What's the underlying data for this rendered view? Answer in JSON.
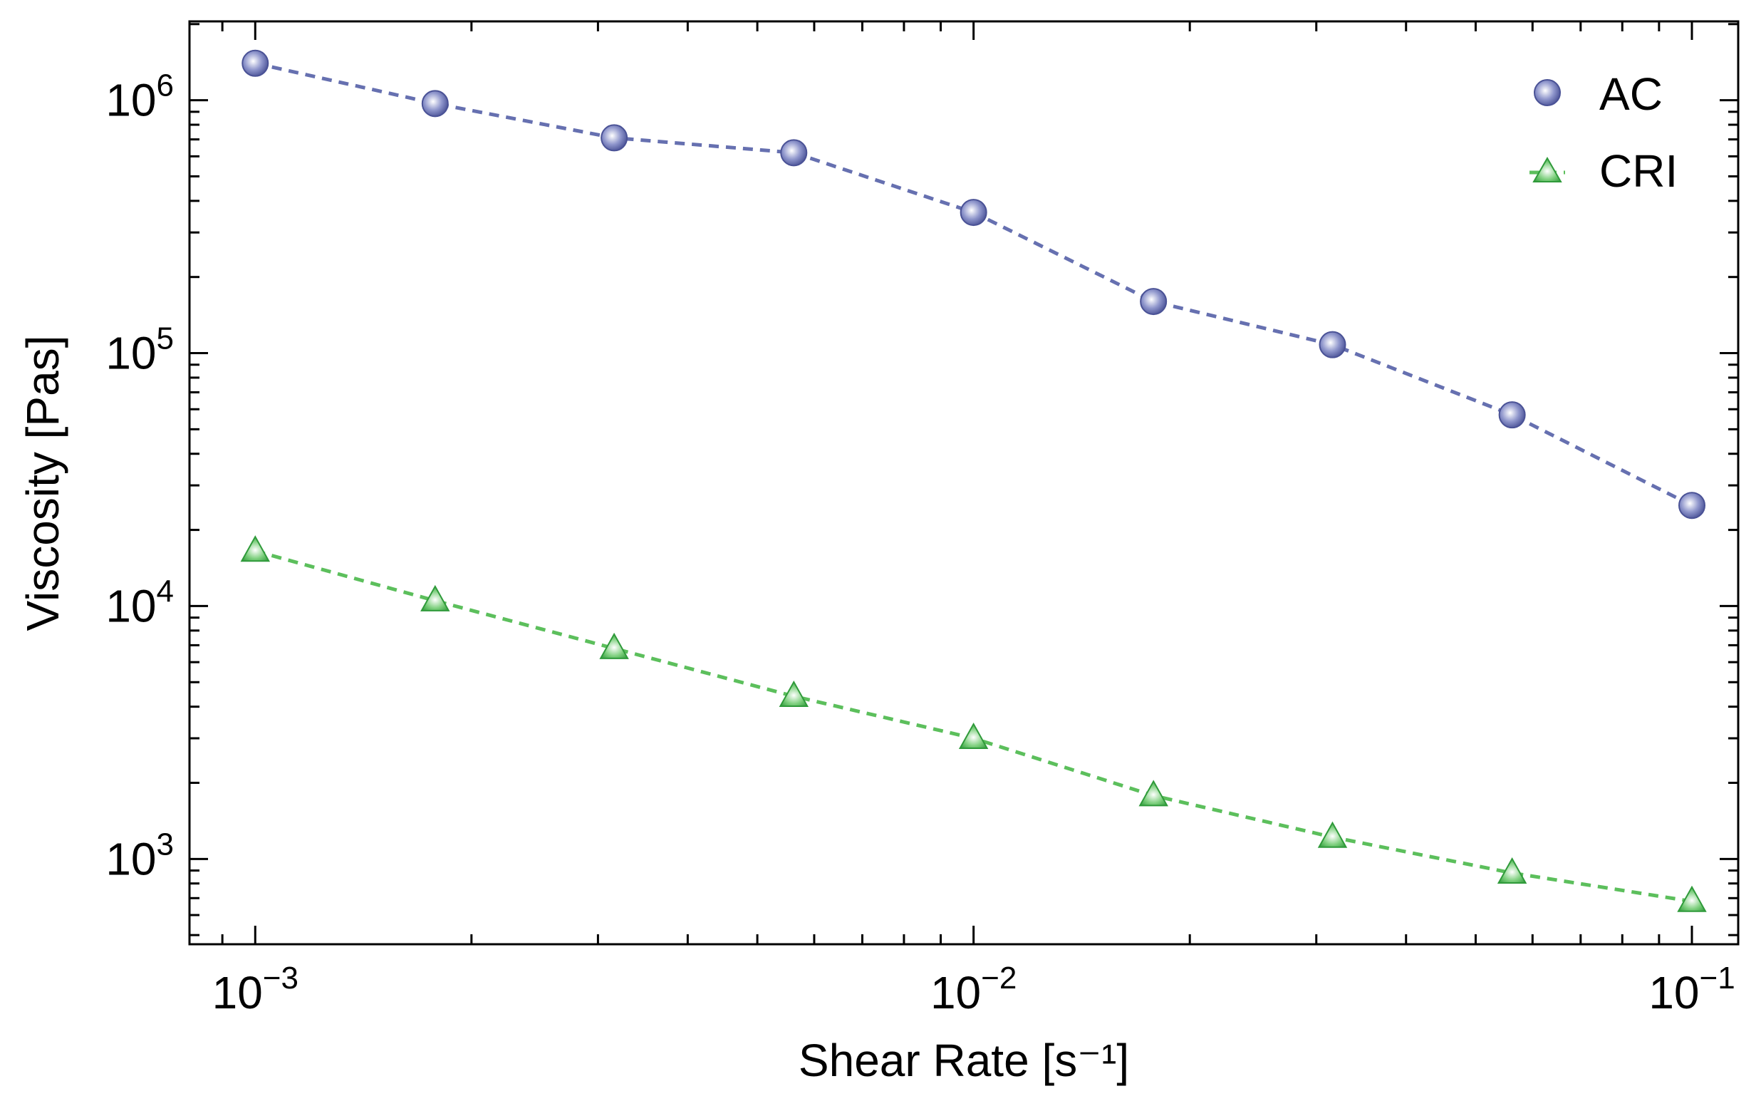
{
  "chart_data": {
    "type": "line",
    "title": "",
    "xlabel": "Shear Rate [s⁻¹]",
    "ylabel": "Viscosity [Pas]",
    "xscale": "log",
    "yscale": "log",
    "xlim": [
      0.00081,
      0.116
    ],
    "ylim": [
      460,
      2050000
    ],
    "x_ticks": [
      {
        "base": "10",
        "exp": "−3",
        "value": 0.001
      },
      {
        "base": "10",
        "exp": "−2",
        "value": 0.01
      },
      {
        "base": "10",
        "exp": "−1",
        "value": 0.1
      }
    ],
    "y_ticks": [
      {
        "base": "10",
        "exp": "3",
        "value": 1000
      },
      {
        "base": "10",
        "exp": "4",
        "value": 10000
      },
      {
        "base": "10",
        "exp": "5",
        "value": 100000
      },
      {
        "base": "10",
        "exp": "6",
        "value": 1000000
      }
    ],
    "x": [
      0.001,
      0.00178,
      0.00316,
      0.00562,
      0.01,
      0.0178,
      0.0316,
      0.0562,
      0.1
    ],
    "series": [
      {
        "name": "AC",
        "marker": "circle",
        "line_style": "dashed",
        "color": "#6670b0",
        "values": [
          1400000,
          970000,
          710000,
          620000,
          360000,
          160000,
          108000,
          57000,
          25000
        ]
      },
      {
        "name": "CRI",
        "marker": "triangle",
        "line_style": "dashed",
        "color": "#5cbf5c",
        "values": [
          16500,
          10500,
          6800,
          4400,
          3000,
          1780,
          1220,
          880,
          680
        ]
      }
    ],
    "grid": false,
    "legend": "top-right"
  }
}
